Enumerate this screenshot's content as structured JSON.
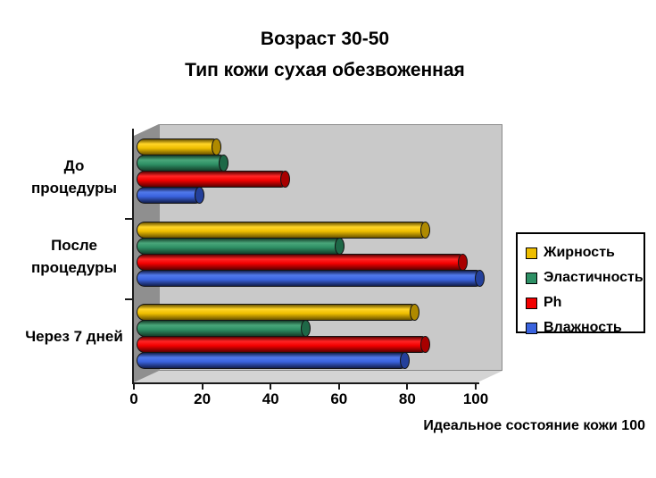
{
  "chart_data": {
    "type": "bar",
    "orientation": "horizontal",
    "style": "3d-cylinder",
    "title": "Возраст 30-50 Тип кожи сухая обезвоженная",
    "title_lines": [
      "Возраст 30-50",
      "Тип кожи сухая обезвоженная"
    ],
    "categories": [
      "До процедуры",
      "После процедуры",
      "Через 7 дней"
    ],
    "category_label_lines": [
      [
        "До",
        "процедуры"
      ],
      [
        "После",
        "процедуры"
      ],
      [
        "Через 7 дней"
      ]
    ],
    "series": [
      {
        "key": "zhirnost",
        "name": "Жирность",
        "values": [
          23,
          84,
          81
        ],
        "color": "#EEBE00",
        "color_bright": "#FFD527",
        "color_dark": "#6B5300",
        "color_cap": "#AF8A00"
      },
      {
        "key": "elastichnost",
        "name": "Эластичность",
        "values": [
          25,
          59,
          49
        ],
        "color": "#2E9065",
        "color_bright": "#49A67A",
        "color_dark": "#153F2B",
        "color_cap": "#1E6847"
      },
      {
        "key": "ph",
        "name": "Ph",
        "values": [
          43,
          95,
          84
        ],
        "color": "#F20000",
        "color_bright": "#FF2525",
        "color_dark": "#5D0000",
        "color_cap": "#A80000"
      },
      {
        "key": "vlazhnost",
        "name": "Влажность",
        "values": [
          18,
          100,
          78
        ],
        "color": "#3A63DE",
        "color_bright": "#5078EA",
        "color_dark": "#131F4E",
        "color_cap": "#24409B"
      }
    ],
    "x_ticks": [
      0,
      20,
      40,
      60,
      80,
      100
    ],
    "xlim": [
      0,
      100
    ],
    "xlabel": "Идеальное состояние кожи 100",
    "ylabel": "",
    "legend_position": "right",
    "grid": false,
    "wall_color": "#C9C9C9",
    "side_wall_color": "#8F8F8F",
    "floor_color": "#D4D4D4"
  }
}
